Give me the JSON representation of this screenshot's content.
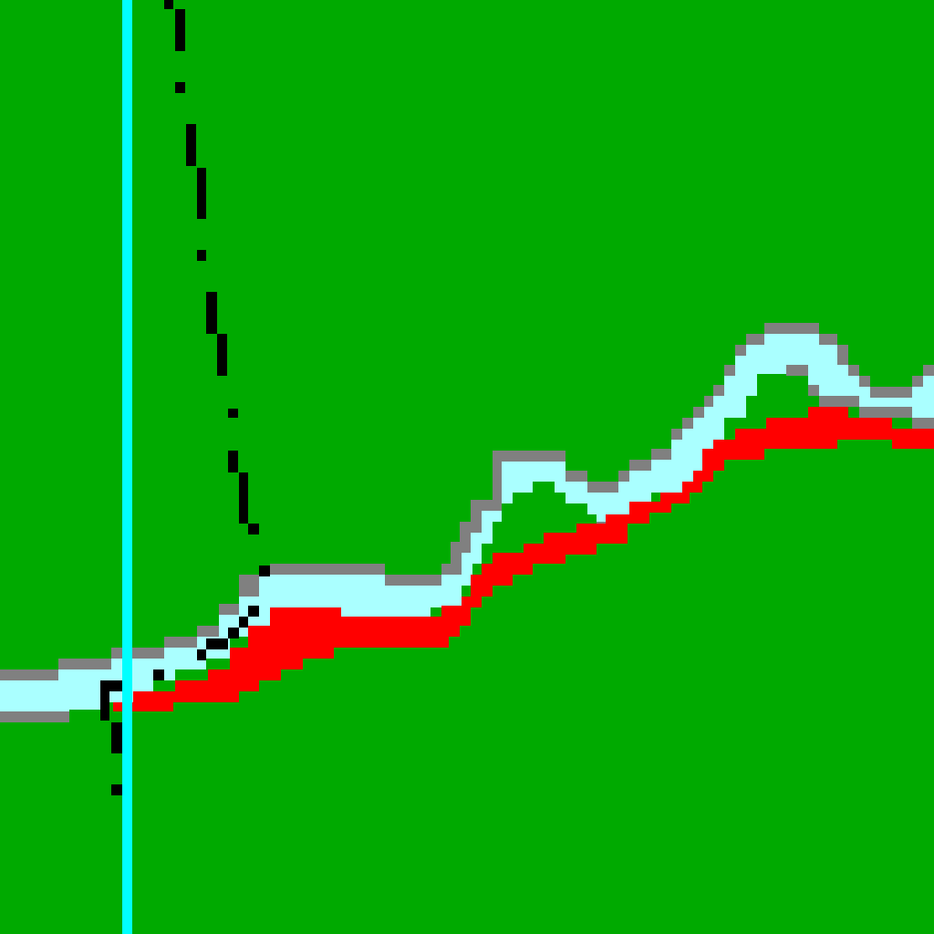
{
  "scene": {
    "type": "pixel-art-game-view",
    "palette": {
      "grass": "#00AA00",
      "river_water": "#AAFFFF",
      "river_bank": "#808080",
      "red_band": "#FF0000",
      "vertical_line": "#00FFFF",
      "dotted_trail": "#000000"
    },
    "elements": [
      {
        "name": "grass-background",
        "label": ""
      },
      {
        "name": "river-bank-outline",
        "label": ""
      },
      {
        "name": "river-water",
        "label": ""
      },
      {
        "name": "red-terrain-band",
        "label": ""
      },
      {
        "name": "dashed-trajectory",
        "label": ""
      },
      {
        "name": "cyan-vertical-line",
        "label": ""
      }
    ]
  }
}
